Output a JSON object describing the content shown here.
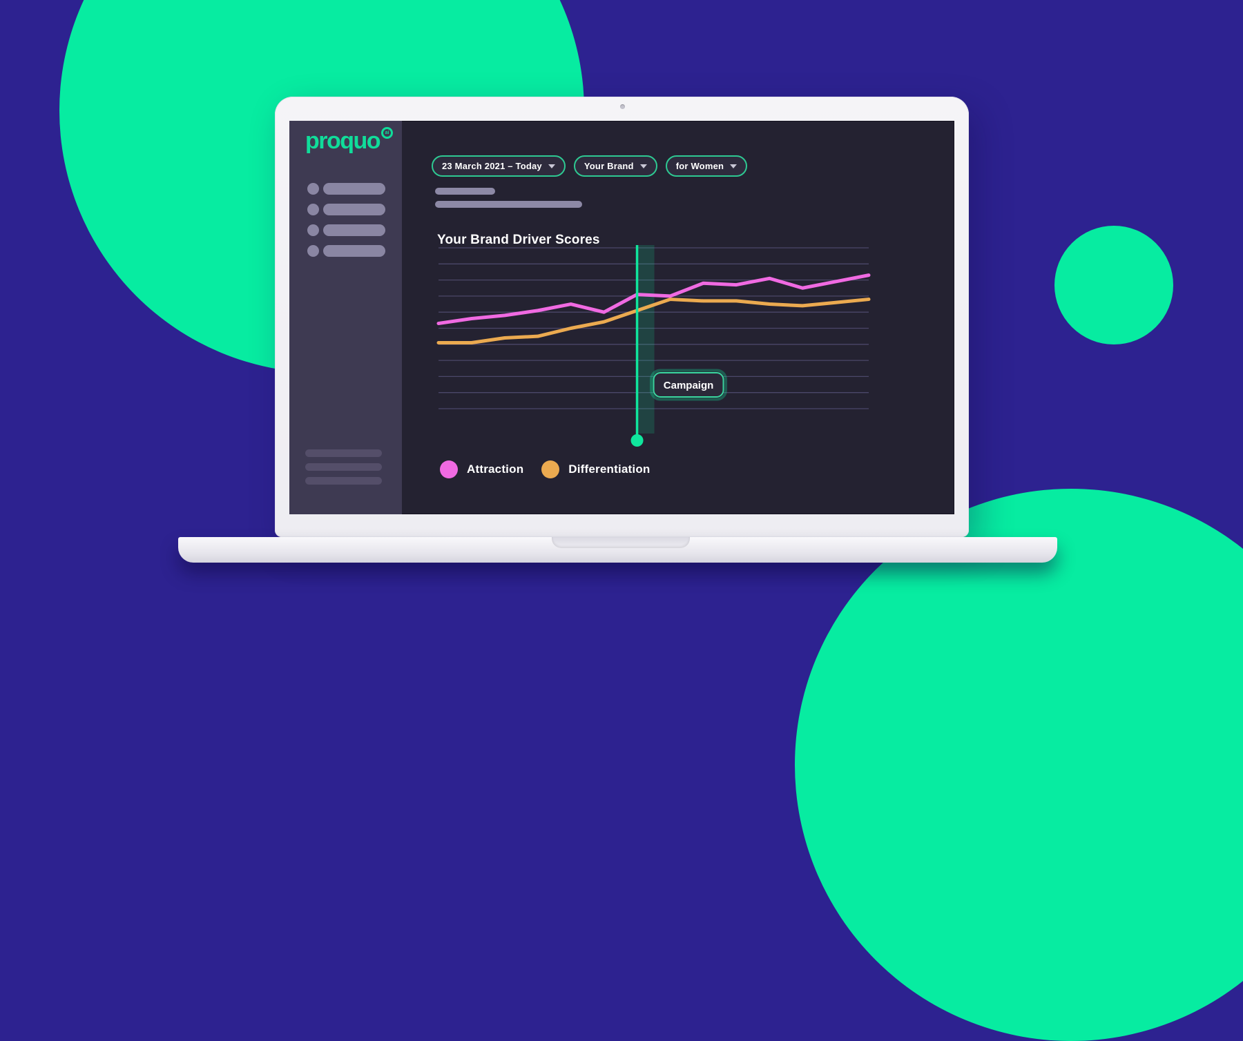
{
  "app": {
    "logo": {
      "text": "proquo",
      "badge": "ai"
    }
  },
  "filters": {
    "date_range": "23 March 2021 – Today",
    "brand": "Your Brand",
    "audience": "for Women"
  },
  "main": {
    "section_title": "Your Brand Driver Scores"
  },
  "legend": {
    "items": [
      {
        "label": "Attraction",
        "color": "#f06ae2"
      },
      {
        "label": "Differentiation",
        "color": "#ebaa50"
      }
    ]
  },
  "chart_data": {
    "type": "line",
    "title": "Your Brand Driver Scores",
    "xlabel": "",
    "ylabel": "",
    "axis_tick_labels_visible": false,
    "grid": true,
    "gridline_count": 11,
    "ylim": [
      0,
      100
    ],
    "x": [
      1,
      2,
      3,
      4,
      5,
      6,
      7,
      8,
      9,
      10,
      11,
      12,
      13,
      14
    ],
    "series": [
      {
        "name": "Attraction",
        "color": "#f06ae2",
        "values": [
          53,
          56,
          58,
          61,
          65,
          60,
          71,
          70,
          78,
          77,
          81,
          75,
          79,
          83
        ]
      },
      {
        "name": "Differentiation",
        "color": "#ebaa50",
        "values": [
          41,
          41,
          44,
          45,
          50,
          54,
          61,
          68,
          67,
          67,
          65,
          64,
          66,
          68
        ]
      }
    ],
    "campaign_marker": {
      "label": "Campaign",
      "index": 6,
      "color": "#10e69d"
    },
    "legend_position": "bottom-left"
  },
  "colors": {
    "background": "#2d2290",
    "accent_green": "#07eca1",
    "screen_bg": "#242231",
    "sidebar_bg": "#3e3a52",
    "pill_border": "#2ec992",
    "gridline": "#4b4769"
  }
}
